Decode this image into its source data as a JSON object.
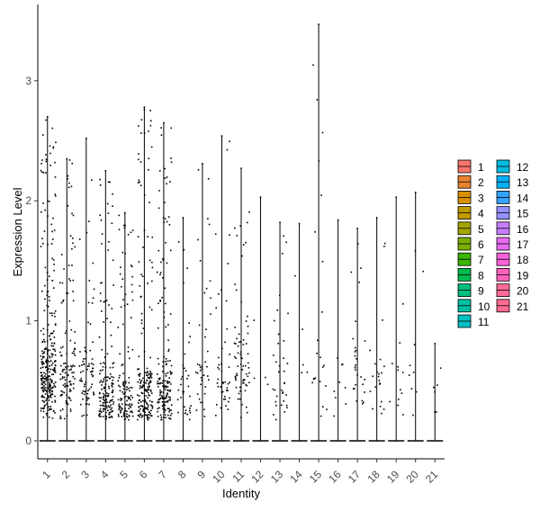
{
  "chart_data": {
    "type": "violin",
    "title": "",
    "xlabel": "Identity",
    "ylabel": "Expression Level",
    "categories": [
      "1",
      "2",
      "3",
      "4",
      "5",
      "6",
      "7",
      "8",
      "9",
      "10",
      "11",
      "12",
      "13",
      "14",
      "15",
      "16",
      "17",
      "18",
      "19",
      "20",
      "21"
    ],
    "y_ticks": [
      0,
      1,
      2,
      3
    ],
    "ylim": [
      -0.15,
      3.5
    ],
    "max_values": [
      2.7,
      2.35,
      2.52,
      2.25,
      1.9,
      2.78,
      2.65,
      1.86,
      2.31,
      2.54,
      2.27,
      2.03,
      1.82,
      1.81,
      3.47,
      1.84,
      1.77,
      1.86,
      2.03,
      2.07,
      0.81
    ],
    "point_density": [
      300,
      120,
      75,
      160,
      120,
      180,
      170,
      35,
      40,
      45,
      70,
      4,
      35,
      5,
      22,
      9,
      28,
      22,
      12,
      9,
      6
    ],
    "dense_center": [
      0.55,
      0.5,
      0.55,
      0.35,
      0.35,
      0.4,
      0.4,
      0.35,
      0.45,
      0.5,
      0.6,
      0.5,
      0.5,
      0.5,
      0.5,
      0.5,
      0.5,
      0.5,
      0.5,
      0.5,
      0.5
    ],
    "colors": [
      "#F8766D",
      "#EA8331",
      "#D89000",
      "#C09B00",
      "#A3A500",
      "#7CAE00",
      "#39B600",
      "#00BB4E",
      "#00BF7D",
      "#00C1A3",
      "#00BFC4",
      "#00BAE0",
      "#00B0F6",
      "#35A2FF",
      "#9590FF",
      "#C77CFF",
      "#E76BF3",
      "#FA62DB",
      "#FF62BC",
      "#FF6A98",
      "#FF6C91"
    ],
    "legend": {
      "title": "",
      "placement": "right",
      "entries": [
        "1",
        "2",
        "3",
        "4",
        "5",
        "6",
        "7",
        "8",
        "9",
        "10",
        "11",
        "12",
        "13",
        "14",
        "15",
        "16",
        "17",
        "18",
        "19",
        "20",
        "21"
      ]
    },
    "grid": false
  }
}
